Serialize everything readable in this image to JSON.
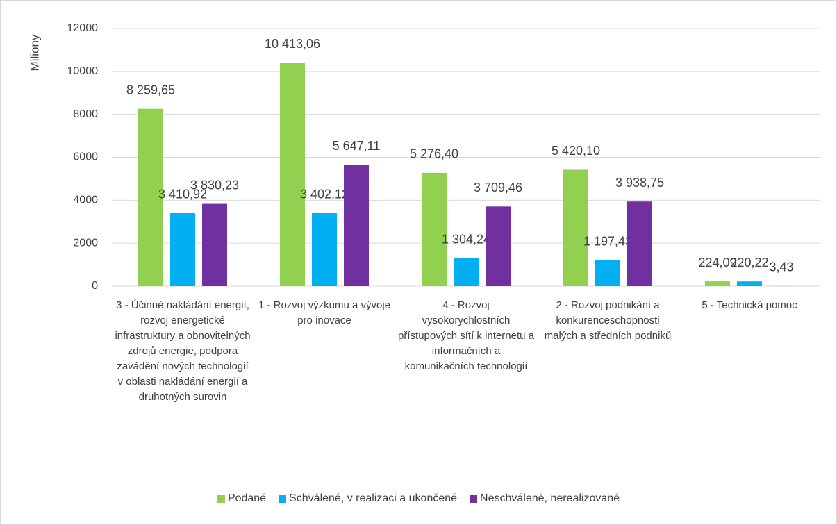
{
  "chart_data": {
    "type": "bar",
    "y_label": "Miliony",
    "categories": [
      "3 - Účinné nakládání energií, rozvoj energetické infrastruktury a obnovitelných zdrojů energie, podpora zavádění nových technologií v oblasti nakládání energií a druhotných surovin",
      "1 - Rozvoj výzkumu a vývoje pro inovace",
      "4 - Rozvoj vysokorychlostních přístupových sítí k internetu a informačních a komunikačních technologií",
      "2 - Rozvoj podnikání a konkurenceschopnosti malých a středních podniků",
      "5 - Technická pomoc"
    ],
    "series": [
      {
        "name": "Podané",
        "color": "#92d050",
        "values": [
          8259.65,
          10413.06,
          5276.4,
          5420.1,
          224.09
        ],
        "value_labels": [
          "8 259,65",
          "10 413,06",
          "5 276,40",
          "5 420,10",
          "224,09"
        ]
      },
      {
        "name": "Schválené, v realizaci a ukončené",
        "color": "#00b0f0",
        "values": [
          3410.92,
          3402.12,
          1304.24,
          1197.43,
          220.22
        ],
        "value_labels": [
          "3 410,92",
          "3 402,12",
          "1 304,24",
          "1 197,43",
          "220,22"
        ]
      },
      {
        "name": "Neschválené, nerealizované",
        "color": "#7030a0",
        "values": [
          3830.23,
          5647.11,
          3709.46,
          3938.75,
          3.43
        ],
        "value_labels": [
          "3 830,23",
          "5 647,11",
          "3 709,46",
          "3 938,75",
          "3,43"
        ]
      }
    ],
    "ylim": [
      0,
      12000
    ],
    "yticks": [
      0,
      2000,
      4000,
      6000,
      8000,
      10000,
      12000
    ],
    "grid": true,
    "legend": "bottom"
  }
}
